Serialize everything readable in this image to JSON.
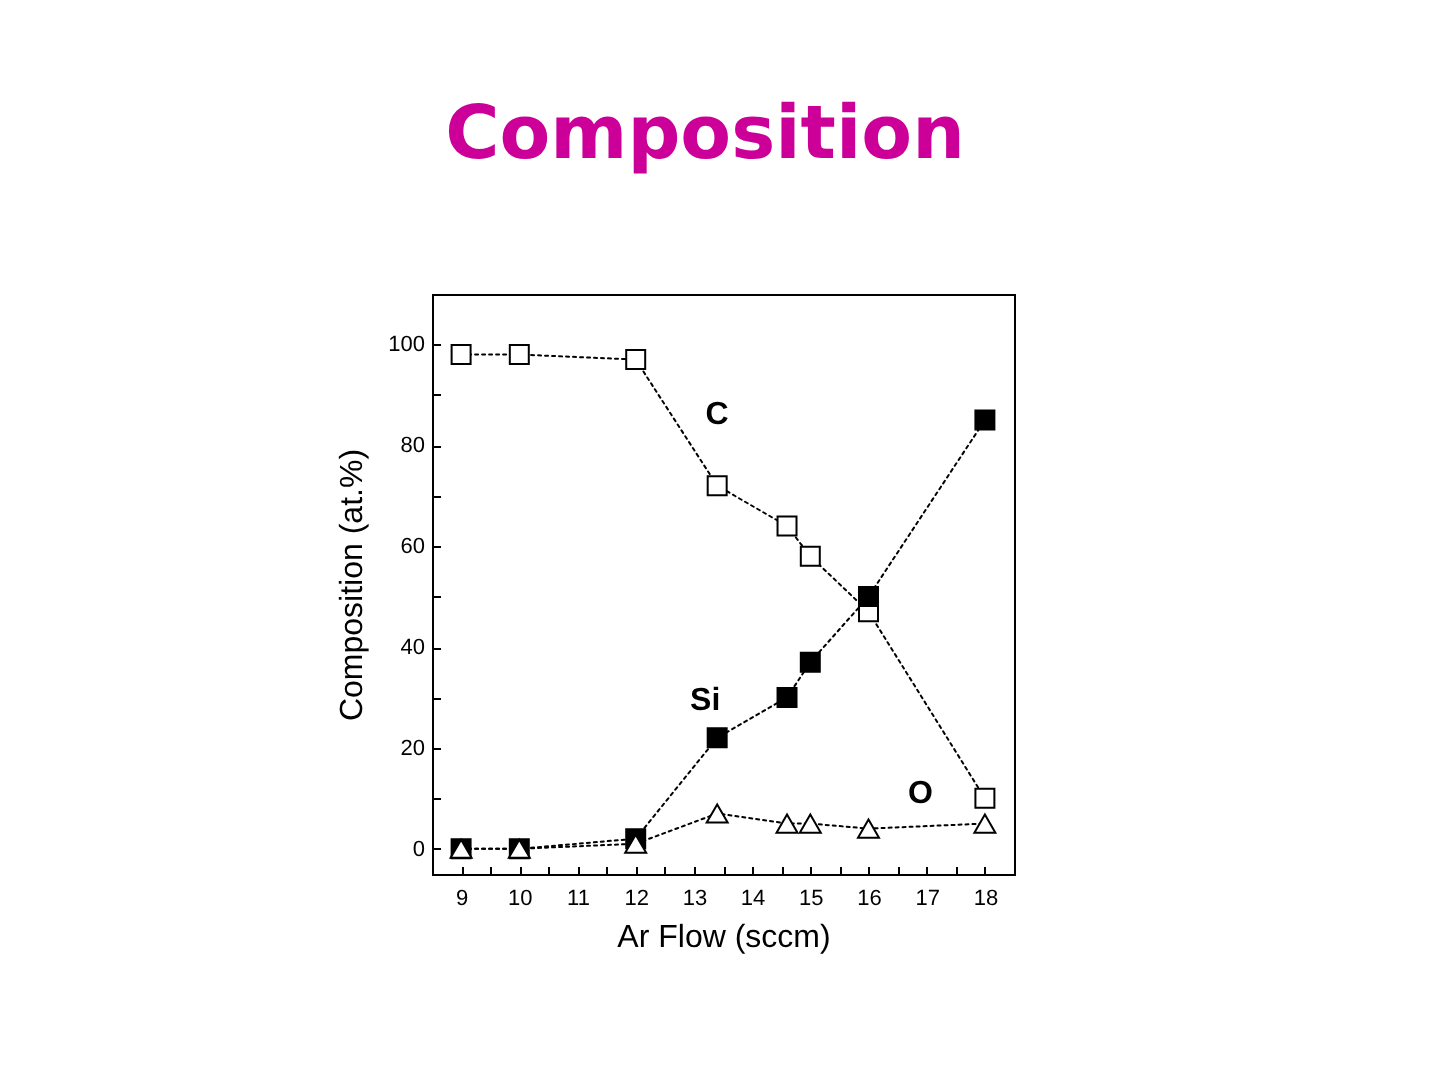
{
  "chart_data": {
    "type": "line",
    "title": "Composition",
    "xlabel": "Ar Flow (sccm)",
    "ylabel": "Composition (at.%)",
    "x": [
      9,
      10,
      12,
      13.4,
      14.6,
      15,
      16,
      18
    ],
    "series": [
      {
        "name": "C",
        "color": "#000000",
        "marker": "square",
        "values": [
          98,
          98,
          97,
          72,
          64,
          58,
          47,
          10
        ]
      },
      {
        "name": "Si",
        "color": "#000000",
        "marker": "square",
        "values": [
          0,
          0,
          2,
          22,
          30,
          37,
          50,
          85
        ]
      },
      {
        "name": "O",
        "color": "#000000",
        "marker": "triangle",
        "values": [
          0,
          0,
          1,
          7,
          5,
          5,
          4,
          5
        ]
      }
    ],
    "xlim": [
      8.5,
      18.5
    ],
    "ylim": [
      -5,
      110
    ],
    "xticks": [
      9,
      {
        "value": 9.5,
        "label": null
      },
      10,
      {
        "value": 10.5,
        "label": null
      },
      11,
      {
        "value": 11.5,
        "label": null
      },
      12,
      {
        "value": 12.5,
        "label": null
      },
      13,
      {
        "value": 13.5,
        "label": null
      },
      14,
      {
        "value": 14.5,
        "label": null
      },
      15,
      {
        "value": 15.5,
        "label": null
      },
      16,
      {
        "value": 16.5,
        "label": null
      },
      17,
      {
        "value": 17.5,
        "label": null
      },
      18
    ],
    "yticks": [
      0,
      {
        "value": 10,
        "label": null
      },
      20,
      {
        "value": 30,
        "label": null
      },
      40,
      {
        "value": 50,
        "label": null
      },
      60,
      {
        "value": 70,
        "label": null
      },
      80,
      {
        "value": 90,
        "label": null
      },
      100
    ],
    "line_style": "dotted"
  }
}
